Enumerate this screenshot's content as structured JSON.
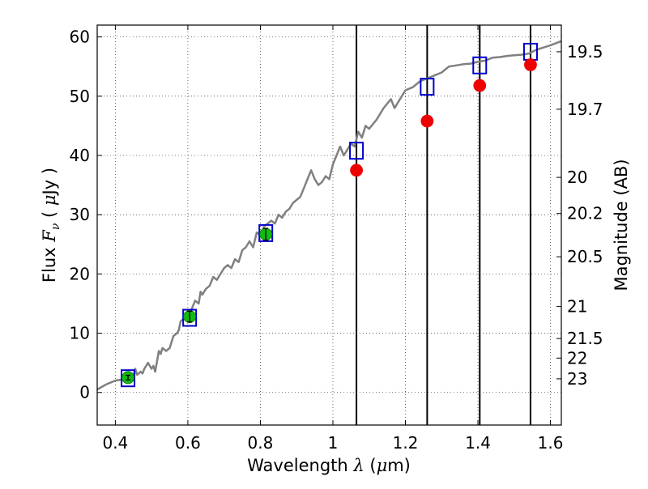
{
  "chart_data": {
    "type": "line",
    "xlabel": "Wavelength λ (μm)",
    "ylabel": "Flux F_ν ( μJy )",
    "ylabel_right": "Magnitude (AB)",
    "xlim": [
      0.35,
      1.63
    ],
    "ylim": [
      -5.5,
      62
    ],
    "grid": true,
    "x_ticks": [
      0.4,
      0.6,
      0.8,
      1.0,
      1.2,
      1.4,
      1.6
    ],
    "x_tick_labels": [
      "0.4",
      "0.6",
      "0.8",
      "1",
      "1.2",
      "1.4",
      "1.6"
    ],
    "y_ticks": [
      0,
      10,
      20,
      30,
      40,
      50,
      60
    ],
    "y_tick_labels": [
      "0",
      "10",
      "20",
      "30",
      "40",
      "50",
      "60"
    ],
    "right_ticks": [
      {
        "label": "19.5",
        "flux": 57.5
      },
      {
        "label": "19.7",
        "flux": 47.8
      },
      {
        "label": "20",
        "flux": 36.3
      },
      {
        "label": "20.2",
        "flux": 30.2
      },
      {
        "label": "20.5",
        "flux": 22.9
      },
      {
        "label": "21",
        "flux": 14.5
      },
      {
        "label": "21.5",
        "flux": 9.1
      },
      {
        "label": "22",
        "flux": 5.8
      },
      {
        "label": "23",
        "flux": 2.3
      }
    ],
    "vertical_lines_x": [
      1.065,
      1.26,
      1.405,
      1.545
    ],
    "series": [
      {
        "kind": "model-spectrum",
        "color": "#808080",
        "x": [
          0.35,
          0.37,
          0.38,
          0.4,
          0.42,
          0.43,
          0.44,
          0.45,
          0.455,
          0.46,
          0.47,
          0.475,
          0.48,
          0.49,
          0.5,
          0.505,
          0.51,
          0.52,
          0.525,
          0.53,
          0.54,
          0.55,
          0.56,
          0.57,
          0.575,
          0.58,
          0.59,
          0.6,
          0.61,
          0.62,
          0.63,
          0.635,
          0.64,
          0.65,
          0.66,
          0.67,
          0.68,
          0.69,
          0.7,
          0.71,
          0.72,
          0.73,
          0.74,
          0.75,
          0.76,
          0.77,
          0.78,
          0.79,
          0.8,
          0.81,
          0.82,
          0.83,
          0.84,
          0.85,
          0.86,
          0.87,
          0.88,
          0.89,
          0.9,
          0.91,
          0.92,
          0.93,
          0.94,
          0.95,
          0.96,
          0.97,
          0.98,
          0.99,
          1.0,
          1.01,
          1.02,
          1.03,
          1.04,
          1.05,
          1.06,
          1.07,
          1.08,
          1.09,
          1.1,
          1.12,
          1.14,
          1.16,
          1.17,
          1.18,
          1.2,
          1.22,
          1.24,
          1.26,
          1.28,
          1.3,
          1.32,
          1.34,
          1.36,
          1.38,
          1.4,
          1.42,
          1.44,
          1.46,
          1.48,
          1.5,
          1.52,
          1.54,
          1.56,
          1.58,
          1.6,
          1.63
        ],
        "y": [
          0.5,
          1.2,
          1.5,
          2.0,
          2.2,
          2.5,
          2.4,
          3.0,
          4.0,
          3.0,
          3.5,
          3.2,
          4.0,
          5.0,
          4.0,
          4.5,
          3.5,
          7.0,
          6.5,
          7.5,
          7.0,
          7.5,
          9.5,
          10.0,
          10.5,
          12.0,
          12.5,
          13.0,
          14.0,
          15.5,
          15.0,
          17.0,
          16.5,
          17.5,
          18.0,
          19.5,
          19.0,
          20.0,
          21.0,
          21.5,
          21.0,
          22.5,
          22.0,
          24.0,
          24.5,
          25.5,
          24.5,
          27.0,
          26.5,
          28.0,
          28.5,
          29.0,
          28.5,
          30.0,
          29.5,
          30.5,
          31.0,
          32.0,
          32.5,
          33.0,
          34.5,
          36.0,
          37.5,
          36.0,
          35.0,
          35.5,
          36.5,
          36.0,
          38.5,
          40.0,
          41.5,
          40.0,
          41.0,
          42.0,
          41.5,
          44.0,
          43.0,
          45.0,
          44.5,
          46.0,
          48.0,
          49.5,
          48.0,
          49.0,
          51.0,
          51.5,
          52.5,
          53.0,
          53.5,
          54.0,
          55.0,
          55.2,
          55.4,
          55.5,
          55.8,
          56.0,
          56.5,
          56.6,
          56.8,
          56.9,
          57.0,
          57.2,
          57.8,
          58.2,
          58.6,
          59.3
        ]
      },
      {
        "kind": "model-box-photometry",
        "marker": "square",
        "color": "#0000cc",
        "x": [
          0.435,
          0.605,
          0.815,
          1.065,
          1.26,
          1.405,
          1.545
        ],
        "y": [
          2.4,
          12.6,
          26.9,
          40.8,
          51.6,
          55.2,
          57.5
        ]
      },
      {
        "kind": "observed-ir",
        "marker": "circle",
        "color": "#ee0000",
        "x": [
          1.065,
          1.26,
          1.405,
          1.545
        ],
        "y": [
          37.5,
          45.8,
          51.8,
          55.3
        ]
      },
      {
        "kind": "observed-optical",
        "marker": "circle",
        "color": "#11bb11",
        "x": [
          0.435,
          0.605,
          0.815
        ],
        "y": [
          2.5,
          12.8,
          26.7
        ],
        "yerr": [
          0.4,
          0.9,
          1.0
        ]
      }
    ]
  }
}
